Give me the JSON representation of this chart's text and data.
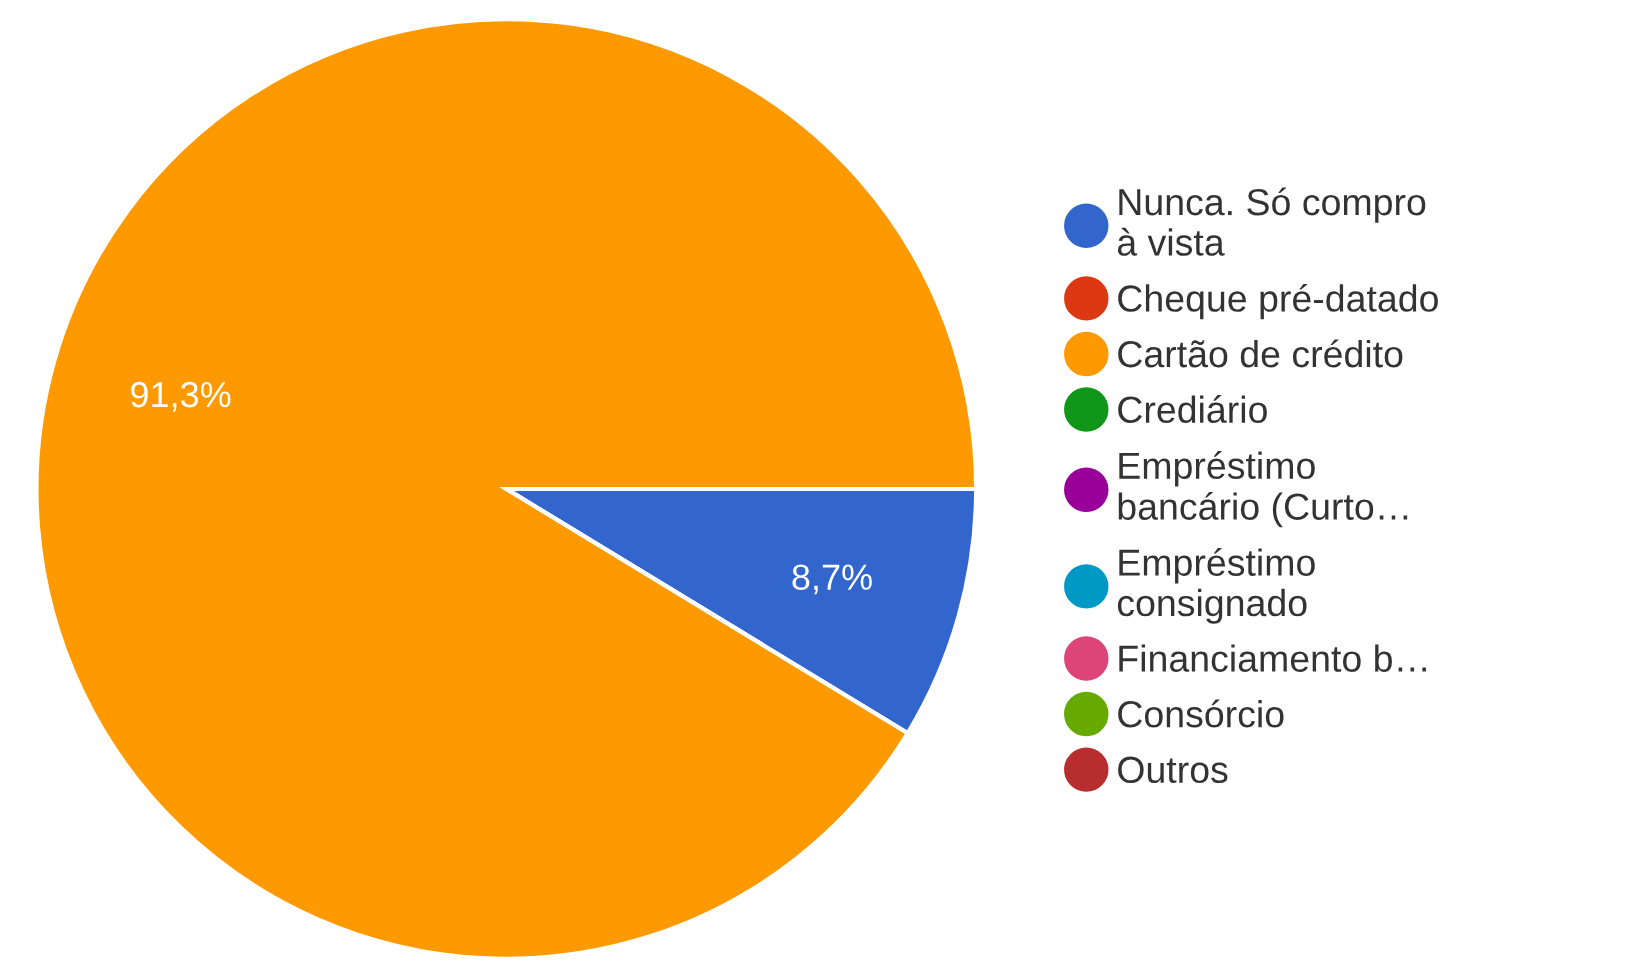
{
  "chart_data": {
    "type": "pie",
    "categories": [
      "Nunca. Só compro à vista",
      "Cheque pré-datado",
      "Cartão de crédito",
      "Crediário",
      "Empréstimo bancário (Curto…",
      "Empréstimo consignado",
      "Financiamento b…",
      "Consórcio",
      "Outros"
    ],
    "values": [
      8.7,
      0,
      91.3,
      0,
      0,
      0,
      0,
      0,
      0
    ],
    "value_labels": [
      "8,7%",
      null,
      "91,3%",
      null,
      null,
      null,
      null,
      null,
      null
    ],
    "colors": [
      "#3366cc",
      "#dc3912",
      "#ff9900",
      "#109618",
      "#990099",
      "#0099c6",
      "#dd4477",
      "#66aa00",
      "#b82e2e"
    ],
    "legend": "right"
  }
}
